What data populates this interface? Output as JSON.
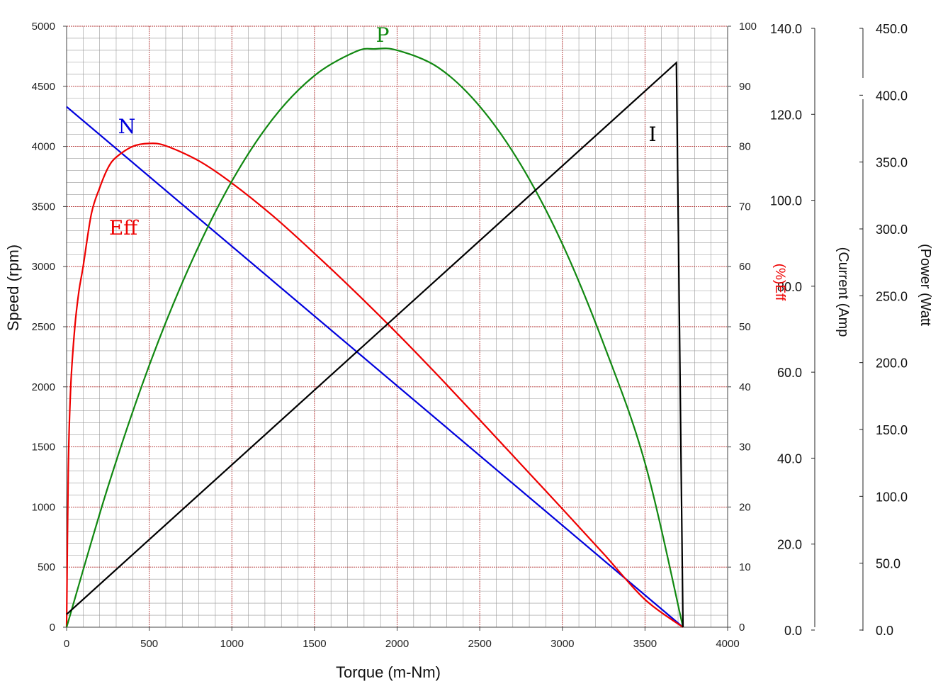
{
  "chart_data": {
    "type": "line",
    "xlabel": "Torque (m-Nm)",
    "x_ticks": [
      "0",
      "500",
      "1000",
      "1500",
      "2000",
      "2500",
      "3000",
      "3500",
      "4000"
    ],
    "xlim": [
      0,
      4000
    ],
    "y_left": {
      "label": "Speed (rpm)",
      "ticks": [
        "0",
        "500",
        "1000",
        "1500",
        "2000",
        "2500",
        "3000",
        "3500",
        "4000",
        "4500",
        "5000"
      ],
      "ylim": [
        0,
        5000
      ]
    },
    "y_eff": {
      "label": "(%)Eff",
      "ticks": [
        "0",
        "10",
        "20",
        "30",
        "40",
        "50",
        "60",
        "70",
        "80",
        "90",
        "100"
      ],
      "ylim": [
        0,
        100
      ]
    },
    "y_current": {
      "label": "(Current (Amp",
      "ticks": [
        "0.0",
        "20.0",
        "40.0",
        "60.0",
        "80.0",
        "100.0",
        "120.0",
        "140.0"
      ],
      "ylim": [
        0,
        140
      ]
    },
    "y_power": {
      "label": "(Power (Watt",
      "ticks": [
        "0.0",
        "50.0",
        "100.0",
        "150.0",
        "200.0",
        "250.0",
        "300.0",
        "350.0",
        "400.0",
        "450.0"
      ],
      "ylim": [
        0,
        450
      ]
    },
    "grid": true,
    "series": [
      {
        "name": "N",
        "color": "#0000dd",
        "axis": "speed",
        "x": [
          0,
          3730
        ],
        "y": [
          4330,
          0
        ]
      },
      {
        "name": "Eff",
        "color": "#ee0000",
        "axis": "eff",
        "x": [
          0,
          10,
          25,
          50,
          75,
          100,
          150,
          200,
          250,
          300,
          400,
          500,
          600,
          800,
          1000,
          1250,
          1500,
          1750,
          2000,
          2250,
          2500,
          2750,
          3000,
          3250,
          3500,
          3730
        ],
        "y": [
          0,
          26,
          40,
          50,
          56,
          60,
          68.8,
          73.1,
          76.4,
          78.2,
          80.0,
          80.5,
          80.1,
          77.6,
          73.9,
          68.4,
          62.2,
          55.7,
          48.9,
          41.8,
          34.5,
          27.1,
          19.7,
          12.2,
          4.6,
          0
        ]
      },
      {
        "name": "P",
        "color": "#118811",
        "axis": "power",
        "x": [
          0,
          250,
          500,
          750,
          1000,
          1250,
          1500,
          1750,
          1865,
          2000,
          2250,
          2500,
          2750,
          3000,
          3250,
          3500,
          3730
        ],
        "y": [
          0,
          105,
          196,
          272,
          334,
          381,
          413,
          431,
          433,
          432,
          419,
          390,
          346,
          287,
          212,
          123,
          0
        ]
      },
      {
        "name": "I",
        "color": "#000000",
        "axis": "current",
        "x": [
          0,
          3690,
          3730
        ],
        "y": [
          3,
          131.5,
          0
        ]
      }
    ]
  }
}
